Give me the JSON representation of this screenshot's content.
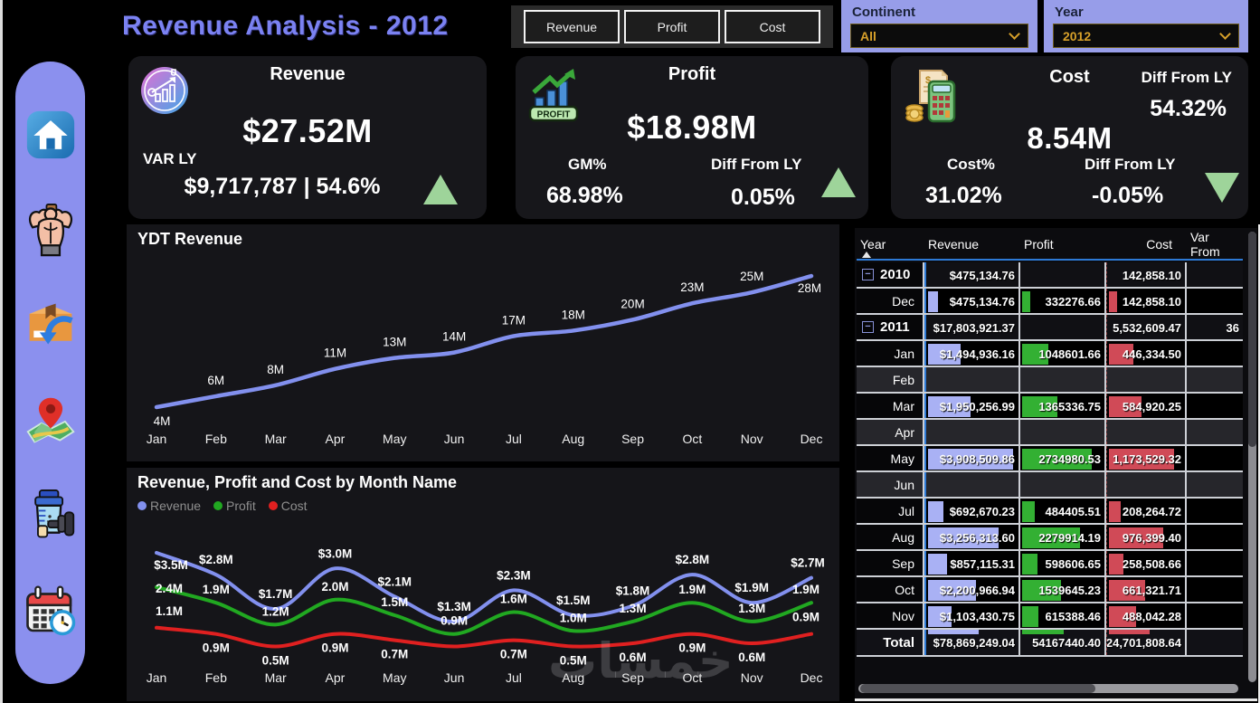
{
  "header": {
    "title": "Revenue Analysis - 2012",
    "nav_buttons": [
      {
        "label": "Revenue"
      },
      {
        "label": "Profit"
      },
      {
        "label": "Cost"
      }
    ],
    "slicers": [
      {
        "label": "Continent",
        "value": "All",
        "icon": "chevron-down-icon"
      },
      {
        "label": "Year",
        "value": "2012",
        "icon": "chevron-down-icon"
      }
    ]
  },
  "sidebar": {
    "items": [
      {
        "icon": "home-icon"
      },
      {
        "icon": "bodybuilder-icon"
      },
      {
        "icon": "package-return-icon"
      },
      {
        "icon": "map-location-icon"
      },
      {
        "icon": "gym-shaker-dumbbell-icon"
      },
      {
        "icon": "calendar-clock-icon"
      }
    ]
  },
  "kpi": {
    "revenue": {
      "title": "Revenue",
      "icon": "revenue-growth-icon",
      "value": "$27.52M",
      "var_label": "VAR LY",
      "var_value": "$9,717,787 | 54.6%",
      "trend": "up"
    },
    "profit": {
      "title": "Profit",
      "icon": "profit-chart-icon",
      "badge": "PROFIT",
      "value": "$18.98M",
      "gm_label": "GM%",
      "gm_value": "68.98%",
      "diff_label": "Diff From LY",
      "diff_value": "0.05%",
      "trend": "up"
    },
    "cost": {
      "title": "Cost",
      "icon": "cost-calculator-icon",
      "value": "8.54M",
      "diff_top_label": "Diff From LY",
      "diff_top_value": "54.32%",
      "cost_pct_label": "Cost%",
      "cost_pct_value": "31.02%",
      "diff_bottom_label": "Diff From LY",
      "diff_bottom_value": "-0.05%",
      "trend": "down"
    }
  },
  "chart_data": [
    {
      "type": "line",
      "title": "YDT Revenue",
      "x": [
        "Jan",
        "Feb",
        "Mar",
        "Apr",
        "May",
        "Jun",
        "Jul",
        "Aug",
        "Sep",
        "Oct",
        "Nov",
        "Dec"
      ],
      "ylabel": "",
      "xlabel": "",
      "ylim": [
        0,
        30
      ],
      "grid": false,
      "legend": "none",
      "series": [
        {
          "name": "YDT Revenue",
          "color": "#8290ee",
          "values": [
            4,
            6,
            8,
            11,
            13,
            14,
            17,
            18,
            20,
            23,
            25,
            28
          ],
          "labels": [
            "4M",
            "6M",
            "8M",
            "11M",
            "13M",
            "14M",
            "17M",
            "18M",
            "20M",
            "23M",
            "25M",
            "28M"
          ],
          "unit": "M"
        }
      ]
    },
    {
      "type": "line",
      "title": "Revenue, Profit and Cost by Month Name",
      "x": [
        "Jan",
        "Feb",
        "Mar",
        "Apr",
        "May",
        "Jun",
        "Jul",
        "Aug",
        "Sep",
        "Oct",
        "Nov",
        "Dec"
      ],
      "ylabel": "",
      "xlabel": "",
      "ylim": [
        0,
        4
      ],
      "grid": false,
      "legend": "top-left",
      "series": [
        {
          "name": "Revenue",
          "color": "#8290ee",
          "values": [
            3.5,
            2.8,
            1.7,
            3.0,
            2.1,
            1.3,
            2.3,
            1.5,
            1.8,
            2.8,
            1.9,
            2.7
          ],
          "labels": [
            "$3.5M",
            "$2.8M",
            "$1.7M",
            "$3.0M",
            "$2.1M",
            "$1.3M",
            "$2.3M",
            "$1.5M",
            "$1.8M",
            "$2.8M",
            "$1.9M",
            "$2.7M"
          ]
        },
        {
          "name": "Profit",
          "color": "#21a821",
          "values": [
            2.4,
            1.9,
            1.2,
            2.0,
            1.5,
            0.9,
            1.6,
            1.0,
            1.3,
            1.9,
            1.3,
            1.9
          ],
          "labels": [
            "2.4M",
            "1.9M",
            "1.2M",
            "2.0M",
            "1.5M",
            "0.9M",
            "1.6M",
            "1.0M",
            "1.3M",
            "1.9M",
            "1.3M",
            "1.9M"
          ]
        },
        {
          "name": "Cost",
          "color": "#e02020",
          "values": [
            1.1,
            0.9,
            0.5,
            0.9,
            0.7,
            0.5,
            0.7,
            0.5,
            0.6,
            0.9,
            0.6,
            0.9
          ],
          "labels": [
            "1.1M",
            "0.9M",
            "0.5M",
            "0.9M",
            "0.7M",
            "",
            "0.7M",
            "0.5M",
            "0.6M",
            "0.9M",
            "0.6M",
            "0.9M"
          ]
        }
      ]
    }
  ],
  "table": {
    "columns": [
      "Year",
      "Revenue",
      "Profit",
      "Cost",
      "Var From"
    ],
    "sort_column": "Year",
    "rows": [
      {
        "type": "year",
        "label": "2010",
        "revenue": "$475,134.76",
        "profit": "",
        "cost": "142,858.10",
        "var": ""
      },
      {
        "type": "month",
        "label": "Dec",
        "revenue": "$475,134.76",
        "profit": "332276.66",
        "cost": "142,858.10",
        "var": "",
        "bars": [
          0.12,
          0.12,
          0.12
        ]
      },
      {
        "type": "year",
        "label": "2011",
        "revenue": "$17,803,921.37",
        "profit": "",
        "cost": "5,532,609.47",
        "var": "36"
      },
      {
        "type": "month",
        "label": "Jan",
        "revenue": "$1,494,936.16",
        "profit": "1048601.66",
        "cost": "446,334.50",
        "var": "",
        "bars": [
          0.38,
          0.38,
          0.38
        ]
      },
      {
        "type": "empty",
        "label": "Feb"
      },
      {
        "type": "month",
        "label": "Mar",
        "revenue": "$1,950,256.99",
        "profit": "1365336.75",
        "cost": "584,920.25",
        "var": "",
        "bars": [
          0.5,
          0.5,
          0.5
        ]
      },
      {
        "type": "empty",
        "label": "Apr"
      },
      {
        "type": "month",
        "label": "May",
        "revenue": "$3,908,509.86",
        "profit": "2734980.53",
        "cost": "1,173,529.32",
        "var": "",
        "bars": [
          1,
          1,
          1
        ]
      },
      {
        "type": "empty",
        "label": "Jun"
      },
      {
        "type": "month",
        "label": "Jul",
        "revenue": "$692,670.23",
        "profit": "484405.51",
        "cost": "208,264.72",
        "var": "",
        "bars": [
          0.18,
          0.18,
          0.18
        ]
      },
      {
        "type": "month",
        "label": "Aug",
        "revenue": "$3,256,313.60",
        "profit": "2279914.19",
        "cost": "976,399.40",
        "var": "",
        "bars": [
          0.83,
          0.83,
          0.83
        ]
      },
      {
        "type": "month",
        "label": "Sep",
        "revenue": "$857,115.31",
        "profit": "598606.65",
        "cost": "258,508.66",
        "var": "",
        "bars": [
          0.22,
          0.22,
          0.22
        ]
      },
      {
        "type": "month",
        "label": "Oct",
        "revenue": "$2,200,966.94",
        "profit": "1539645.23",
        "cost": "661,321.71",
        "var": "",
        "bars": [
          0.56,
          0.56,
          0.56
        ]
      },
      {
        "type": "month",
        "label": "Nov",
        "revenue": "$1,103,430.75",
        "profit": "615388.46",
        "cost": "488,042.28",
        "var": "",
        "bars": [
          0.28,
          0.23,
          0.42
        ]
      }
    ],
    "total": {
      "label": "Total",
      "revenue": "$78,869,249.04",
      "profit": "54167440.40",
      "cost": "24,701,808.64",
      "var": "",
      "bars": [
        0.6,
        0.6,
        0.62
      ]
    }
  },
  "watermark": "خمسات",
  "colors": {
    "accent": "#7b82f2",
    "slicer_bg": "#979de9",
    "gold": "#d7a02a",
    "green_indicator": "#9ed49a",
    "revenue_line": "#8290ee",
    "profit_line": "#21a821",
    "cost_line": "#e02020",
    "bar_revenue": "#a9b1f4",
    "bar_profit": "#33b033",
    "bar_cost": "#d04a57"
  }
}
